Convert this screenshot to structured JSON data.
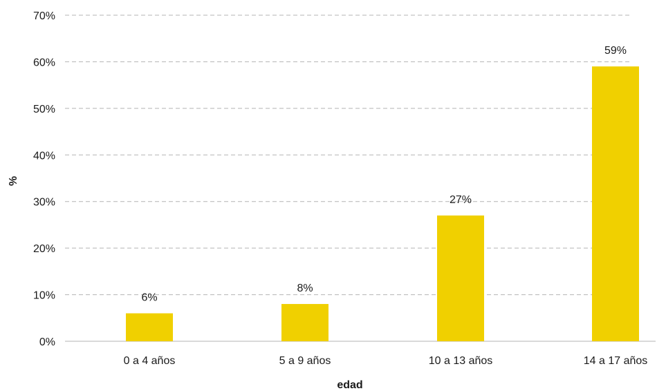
{
  "chart_data": {
    "type": "bar",
    "title": "",
    "xlabel": "edad",
    "ylabel": "%",
    "categories": [
      "0 a 4 años",
      "5 a 9 años",
      "10 a 13 años",
      "14 a 17 años"
    ],
    "values": [
      6,
      8,
      27,
      59
    ],
    "data_labels": [
      "6%",
      "8%",
      "27%",
      "59%"
    ],
    "ylim": [
      0,
      70
    ],
    "yticks": [
      0,
      10,
      20,
      30,
      40,
      50,
      60,
      70
    ],
    "ytick_labels": [
      "0%",
      "10%",
      "20%",
      "30%",
      "40%",
      "50%",
      "60%",
      "70%"
    ],
    "grid": true,
    "legend": "none",
    "colors": {
      "bar": "#f0d000"
    }
  }
}
